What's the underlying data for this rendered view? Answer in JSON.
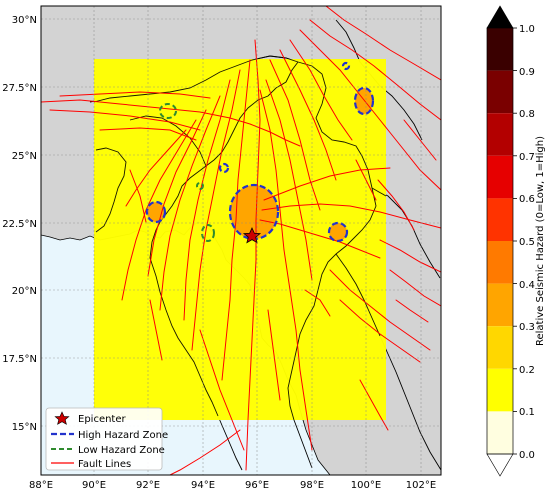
{
  "map": {
    "lat_ticks": [
      "30°N",
      "27.5°N",
      "25°N",
      "22.5°N",
      "20°N",
      "17.5°N",
      "15°N"
    ],
    "lon_ticks": [
      "88°E",
      "90°E",
      "92°E",
      "94°E",
      "96°E",
      "98°E",
      "100°E",
      "102°E"
    ],
    "extent": {
      "lon": [
        88,
        103
      ],
      "lat": [
        13.2,
        30.8
      ]
    },
    "hazard_region": {
      "lon": [
        90,
        101
      ],
      "lat": [
        15.1,
        28.5
      ],
      "level": 0.2,
      "color": "#ffff00"
    },
    "epicenter": {
      "lon": 96.0,
      "lat": 22.0
    },
    "colors": {
      "land": "#d3d3d3",
      "ocean": "#e8f6fd",
      "fault": "#ff0000",
      "high_zone": "#2233cc",
      "low_zone": "#2e8b2e"
    }
  },
  "legend": {
    "items": [
      {
        "label": "Epicenter",
        "kind": "star-icon"
      },
      {
        "label": "High Hazard Zone",
        "kind": "dashed-blue-line-icon"
      },
      {
        "label": "Low Hazard Zone",
        "kind": "dashed-green-line-icon"
      },
      {
        "label": "Fault Lines",
        "kind": "red-line-icon"
      }
    ]
  },
  "colorbar": {
    "label": "Relative Seismic Hazard (0=Low, 1=High)",
    "ticks": [
      "0.0",
      "0.1",
      "0.2",
      "0.3",
      "0.4",
      "0.5",
      "0.6",
      "0.7",
      "0.8",
      "0.9",
      "1.0"
    ],
    "colors": [
      "#fffee0",
      "#fff8a0",
      "#ffff00",
      "#ffd700",
      "#ffa500",
      "#ff7a00",
      "#ff3300",
      "#e60000",
      "#b30000",
      "#7a0000",
      "#3a0000"
    ],
    "extend_colors": {
      "over": "#000000",
      "under": "#ffffff"
    }
  }
}
